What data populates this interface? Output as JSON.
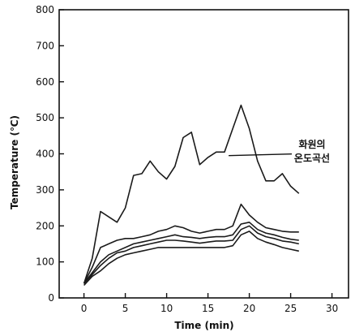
{
  "chart_data": {
    "type": "line",
    "title": "",
    "xlabel": "Time (min)",
    "ylabel": "Temperature (℃)",
    "xlim": [
      -3,
      32
    ],
    "ylim": [
      0,
      800
    ],
    "x_ticks": [
      0,
      5,
      10,
      15,
      20,
      25,
      30
    ],
    "y_ticks": [
      0,
      100,
      200,
      300,
      400,
      500,
      600,
      700,
      800
    ],
    "annotation": {
      "text_line1": "화원의",
      "text_line2": "온도곡선",
      "points_to": {
        "x": 17.5,
        "y": 395
      }
    },
    "series": [
      {
        "x": [
          0,
          1,
          2,
          3,
          4,
          5,
          6,
          7,
          8,
          9,
          10,
          11,
          12,
          13,
          14,
          15,
          16,
          17,
          18,
          19,
          20,
          21,
          22,
          23,
          24,
          25,
          26
        ],
        "values": [
          40,
          110,
          240,
          225,
          210,
          250,
          340,
          345,
          380,
          350,
          330,
          365,
          445,
          460,
          370,
          390,
          405,
          405,
          470,
          535,
          470,
          380,
          325,
          325,
          345,
          310,
          290
        ]
      },
      {
        "x": [
          0,
          1,
          2,
          3,
          4,
          5,
          6,
          7,
          8,
          9,
          10,
          11,
          12,
          13,
          14,
          15,
          16,
          17,
          18,
          19,
          20,
          21,
          22,
          23,
          24,
          25,
          26
        ],
        "values": [
          40,
          85,
          140,
          150,
          160,
          165,
          165,
          170,
          175,
          185,
          190,
          200,
          195,
          185,
          180,
          185,
          190,
          190,
          200,
          260,
          230,
          210,
          195,
          190,
          185,
          183,
          183
        ]
      },
      {
        "x": [
          0,
          1,
          2,
          3,
          4,
          5,
          6,
          7,
          8,
          9,
          10,
          11,
          12,
          13,
          14,
          15,
          16,
          17,
          18,
          19,
          20,
          21,
          22,
          23,
          24,
          25,
          26
        ],
        "values": [
          40,
          70,
          100,
          120,
          130,
          140,
          150,
          155,
          160,
          165,
          170,
          175,
          170,
          168,
          165,
          168,
          170,
          170,
          175,
          205,
          210,
          190,
          180,
          175,
          168,
          163,
          160
        ]
      },
      {
        "x": [
          0,
          1,
          2,
          3,
          4,
          5,
          6,
          7,
          8,
          9,
          10,
          11,
          12,
          13,
          14,
          15,
          16,
          17,
          18,
          19,
          20,
          21,
          22,
          23,
          24,
          25,
          26
        ],
        "values": [
          40,
          65,
          90,
          110,
          125,
          130,
          140,
          145,
          150,
          155,
          160,
          160,
          158,
          155,
          152,
          155,
          158,
          158,
          160,
          190,
          200,
          180,
          170,
          165,
          158,
          155,
          150
        ]
      },
      {
        "x": [
          0,
          1,
          2,
          3,
          4,
          5,
          6,
          7,
          8,
          9,
          10,
          11,
          12,
          13,
          14,
          15,
          16,
          17,
          18,
          19,
          20,
          21,
          22,
          23,
          24,
          25,
          26
        ],
        "values": [
          35,
          60,
          75,
          95,
          110,
          120,
          125,
          130,
          135,
          140,
          140,
          140,
          140,
          140,
          140,
          140,
          140,
          140,
          145,
          175,
          185,
          165,
          155,
          148,
          140,
          135,
          130
        ]
      }
    ],
    "grid": false,
    "legend": "none"
  }
}
